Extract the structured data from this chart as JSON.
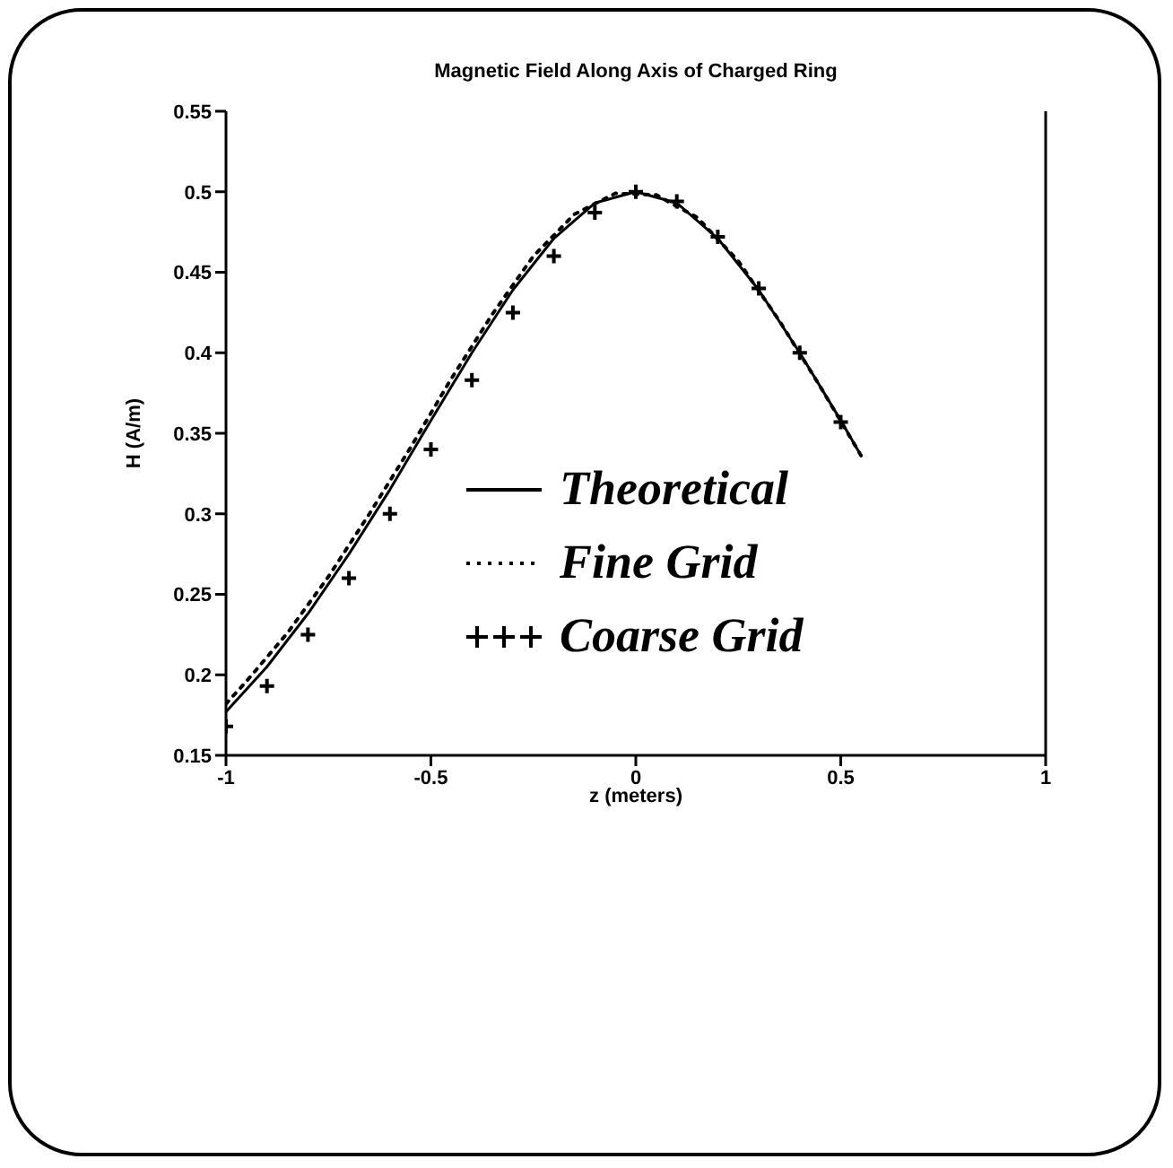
{
  "chart_data": {
    "type": "line",
    "title": "Magnetic Field Along Axis of Charged Ring",
    "xlabel": "z (meters)",
    "ylabel": "H (A/m)",
    "xlim": [
      -1,
      1
    ],
    "xticks": [
      -1,
      -0.5,
      0,
      0.5,
      1
    ],
    "ylim": [
      0.15,
      0.55
    ],
    "yticks": [
      0.15,
      0.2,
      0.25,
      0.3,
      0.35,
      0.4,
      0.45,
      0.5,
      0.55
    ],
    "grid": false,
    "legend": "bottom right",
    "series": [
      {
        "name": "Theoretical",
        "type": "line",
        "line_style": "solid",
        "marker": "none",
        "color": "#000000",
        "x": [
          -1,
          -0.9,
          -0.8,
          -0.7,
          -0.6,
          -0.5,
          -0.4,
          -0.3,
          -0.2,
          -0.1,
          0,
          0.1,
          0.2,
          0.3,
          0.4,
          0.5,
          0.55
        ],
        "values": [
          0.177,
          0.205,
          0.238,
          0.275,
          0.315,
          0.358,
          0.4,
          0.439,
          0.471,
          0.493,
          0.5,
          0.493,
          0.471,
          0.439,
          0.4,
          0.358,
          0.336
        ]
      },
      {
        "name": "Fine Grid",
        "type": "line",
        "line_style": "dotted",
        "marker": "none",
        "color": "#000000",
        "x": [
          -1,
          -0.95,
          -0.85,
          -0.75,
          -0.65,
          -0.55,
          -0.45,
          -0.35,
          -0.25,
          -0.15,
          -0.05,
          0.05,
          0.15,
          0.25,
          0.35,
          0.45,
          0.55
        ],
        "values": [
          0.182,
          0.196,
          0.226,
          0.261,
          0.3,
          0.341,
          0.384,
          0.424,
          0.46,
          0.486,
          0.499,
          0.498,
          0.484,
          0.457,
          0.42,
          0.379,
          0.336
        ]
      },
      {
        "name": "Coarse Grid",
        "type": "scatter",
        "marker": "cross",
        "color": "#000000",
        "x": [
          -1,
          -0.9,
          -0.8,
          -0.7,
          -0.6,
          -0.5,
          -0.4,
          -0.3,
          -0.2,
          -0.1,
          0,
          0.1,
          0.2,
          0.3,
          0.4,
          0.5
        ],
        "values": [
          0.168,
          0.193,
          0.225,
          0.26,
          0.3,
          0.34,
          0.383,
          0.425,
          0.46,
          0.487,
          0.5,
          0.494,
          0.472,
          0.44,
          0.4,
          0.357
        ]
      }
    ]
  }
}
